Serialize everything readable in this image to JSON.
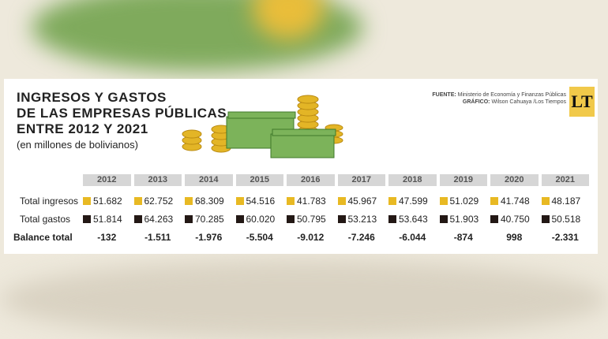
{
  "header": {
    "title_lines": [
      "INGRESOS Y GASTOS",
      "DE LAS EMPRESAS PÚBLICAS",
      "ENTRE 2012 Y 2021"
    ],
    "subtitle": "(en millones de bolivianos)"
  },
  "source": {
    "fuente_label": "FUENTE:",
    "fuente": "Ministerio de Economía y Finanzas Públicas",
    "grafico_label": "GRÁFICO:",
    "grafico": "Wilson Cahuaya /Los Tiempos"
  },
  "logo": "LT",
  "table": {
    "columns": [
      "2012",
      "2013",
      "2014",
      "2015",
      "2016",
      "2017",
      "2018",
      "2019",
      "2020",
      "2021"
    ],
    "rows": [
      {
        "label": "Total ingresos",
        "values": [
          "51.682",
          "62.752",
          "68.309",
          "54.516",
          "41.783",
          "45.967",
          "47.599",
          "51.029",
          "41.748",
          "48.187"
        ]
      },
      {
        "label": "Total gastos",
        "values": [
          "51.814",
          "64.263",
          "70.285",
          "60.020",
          "50.795",
          "53.213",
          "53.643",
          "51.903",
          "40.750",
          "50.518"
        ]
      },
      {
        "label": "Balance total",
        "values": [
          "-132",
          "-1.511",
          "-1.976",
          "-5.504",
          "-9.012",
          "-7.246",
          "-6.044",
          "-874",
          "998",
          "-2.331"
        ]
      }
    ]
  }
}
